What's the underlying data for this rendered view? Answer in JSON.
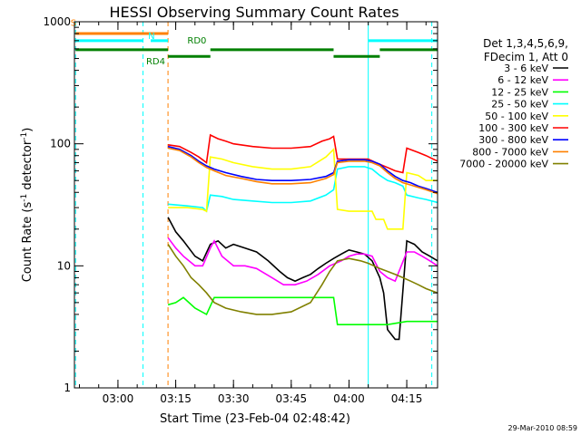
{
  "chart_data": {
    "type": "line",
    "title": "HESSI Observing Summary Count Rates",
    "xlabel": "Start Time (23-Feb-04 02:48:42)",
    "ylabel_main": "Count Rate (s",
    "ylabel_sup1": "-1",
    "ylabel_mid": " detector",
    "ylabel_sup2": "-1",
    "ylabel_end": ")",
    "y_scale": "log",
    "ylim": [
      1,
      1000
    ],
    "y_ticks": [
      {
        "label": "1",
        "v": 1
      },
      {
        "label": "10",
        "v": 10
      },
      {
        "label": "100",
        "v": 100
      },
      {
        "label": "1000",
        "v": 1000
      }
    ],
    "xlim": [
      -11.3,
      83
    ],
    "x_ticks": [
      {
        "label": "03:00",
        "t": 0
      },
      {
        "label": "03:15",
        "t": 15
      },
      {
        "label": "03:30",
        "t": 30
      },
      {
        "label": "03:45",
        "t": 45
      },
      {
        "label": "04:00",
        "t": 60
      },
      {
        "label": "04:15",
        "t": 75
      }
    ],
    "legend_position": "right",
    "legend_header": [
      "Det 1,3,4,5,6,9,",
      "FDecim 1, Att 0"
    ],
    "series": [
      {
        "name": "3 - 6 keV",
        "color": "#000000",
        "points": [
          [
            13,
            25
          ],
          [
            15,
            19
          ],
          [
            17,
            16
          ],
          [
            20,
            12
          ],
          [
            22,
            11
          ],
          [
            24,
            15
          ],
          [
            26,
            16
          ],
          [
            28,
            14
          ],
          [
            30,
            15
          ],
          [
            33,
            14
          ],
          [
            36,
            13
          ],
          [
            39,
            11
          ],
          [
            42,
            9
          ],
          [
            44,
            8
          ],
          [
            46,
            7.5
          ],
          [
            48,
            8
          ],
          [
            50,
            8.5
          ],
          [
            52,
            9.5
          ],
          [
            54,
            10.5
          ],
          [
            56,
            11.5
          ],
          [
            58,
            12.5
          ],
          [
            60,
            13.5
          ],
          [
            62,
            13
          ],
          [
            64,
            12.5
          ],
          [
            66,
            11
          ],
          [
            68,
            8
          ],
          [
            69,
            6
          ],
          [
            70,
            3
          ],
          [
            72,
            2.5
          ],
          [
            73,
            2.5
          ],
          [
            75,
            16
          ],
          [
            77,
            15
          ],
          [
            79,
            13
          ],
          [
            81,
            12
          ],
          [
            83,
            11
          ]
        ]
      },
      {
        "name": "6 - 12 keV",
        "color": "#ff00ff",
        "points": [
          [
            13,
            17
          ],
          [
            15,
            14
          ],
          [
            17,
            12
          ],
          [
            20,
            10
          ],
          [
            22,
            10
          ],
          [
            24,
            14
          ],
          [
            25,
            16
          ],
          [
            27,
            12
          ],
          [
            30,
            10
          ],
          [
            33,
            10
          ],
          [
            36,
            9.5
          ],
          [
            40,
            8
          ],
          [
            43,
            7
          ],
          [
            46,
            7
          ],
          [
            49,
            7.5
          ],
          [
            52,
            8.5
          ],
          [
            55,
            10
          ],
          [
            58,
            11
          ],
          [
            60,
            12
          ],
          [
            62,
            12.5
          ],
          [
            64,
            12.5
          ],
          [
            66,
            12
          ],
          [
            68,
            9
          ],
          [
            70,
            8
          ],
          [
            72,
            7.5
          ],
          [
            75,
            13
          ],
          [
            77,
            13
          ],
          [
            79,
            12
          ],
          [
            81,
            11
          ],
          [
            83,
            10
          ]
        ]
      },
      {
        "name": "12 - 25 keV",
        "color": "#00ff00",
        "points": [
          [
            13,
            4.8
          ],
          [
            15,
            5
          ],
          [
            17,
            5.5
          ],
          [
            20,
            4.5
          ],
          [
            23,
            4
          ],
          [
            25,
            5.5
          ],
          [
            30,
            5.5
          ],
          [
            40,
            5.5
          ],
          [
            50,
            5.5
          ],
          [
            56,
            5.5
          ],
          [
            57,
            3.3
          ],
          [
            60,
            3.3
          ],
          [
            65,
            3.3
          ],
          [
            70,
            3.3
          ],
          [
            75,
            3.5
          ],
          [
            80,
            3.5
          ],
          [
            83,
            3.5
          ]
        ]
      },
      {
        "name": "25 - 50 keV",
        "color": "#00ffff",
        "points": [
          [
            13,
            32
          ],
          [
            18,
            31
          ],
          [
            22,
            30
          ],
          [
            23,
            28
          ],
          [
            24,
            38
          ],
          [
            27,
            37
          ],
          [
            30,
            35
          ],
          [
            35,
            34
          ],
          [
            40,
            33
          ],
          [
            45,
            33
          ],
          [
            50,
            34
          ],
          [
            54,
            38
          ],
          [
            56,
            42
          ],
          [
            57,
            62
          ],
          [
            60,
            65
          ],
          [
            64,
            65
          ],
          [
            66,
            62
          ],
          [
            68,
            55
          ],
          [
            70,
            50
          ],
          [
            72,
            48
          ],
          [
            74,
            45
          ],
          [
            75,
            38
          ],
          [
            78,
            36
          ],
          [
            80,
            35
          ],
          [
            83,
            33
          ]
        ]
      },
      {
        "name": "50 - 100 keV",
        "color": "#ffff00",
        "points": [
          [
            13,
            30
          ],
          [
            18,
            30
          ],
          [
            22,
            29
          ],
          [
            23,
            28
          ],
          [
            24,
            78
          ],
          [
            27,
            75
          ],
          [
            30,
            70
          ],
          [
            35,
            65
          ],
          [
            40,
            62
          ],
          [
            45,
            62
          ],
          [
            50,
            65
          ],
          [
            54,
            78
          ],
          [
            56,
            90
          ],
          [
            57,
            29
          ],
          [
            60,
            28
          ],
          [
            64,
            28
          ],
          [
            66,
            28
          ],
          [
            67,
            24
          ],
          [
            68,
            24
          ],
          [
            69,
            24
          ],
          [
            70,
            20
          ],
          [
            72,
            20
          ],
          [
            74,
            20
          ],
          [
            75,
            58
          ],
          [
            78,
            55
          ],
          [
            80,
            50
          ],
          [
            83,
            50
          ]
        ]
      },
      {
        "name": "100 - 300 keV",
        "color": "#ff0000",
        "points": [
          [
            13,
            98
          ],
          [
            16,
            95
          ],
          [
            19,
            85
          ],
          [
            21,
            78
          ],
          [
            23,
            70
          ],
          [
            24,
            118
          ],
          [
            26,
            110
          ],
          [
            28,
            105
          ],
          [
            30,
            100
          ],
          [
            35,
            95
          ],
          [
            40,
            92
          ],
          [
            45,
            92
          ],
          [
            50,
            95
          ],
          [
            53,
            105
          ],
          [
            55,
            110
          ],
          [
            56,
            115
          ],
          [
            57,
            75
          ],
          [
            60,
            75
          ],
          [
            65,
            75
          ],
          [
            67,
            70
          ],
          [
            70,
            64
          ],
          [
            72,
            60
          ],
          [
            74,
            58
          ],
          [
            75,
            92
          ],
          [
            78,
            85
          ],
          [
            80,
            80
          ],
          [
            83,
            72
          ]
        ]
      },
      {
        "name": "300 - 800 keV",
        "color": "#0000ff",
        "points": [
          [
            13,
            95
          ],
          [
            16,
            90
          ],
          [
            19,
            80
          ],
          [
            21,
            72
          ],
          [
            23,
            66
          ],
          [
            25,
            62
          ],
          [
            28,
            58
          ],
          [
            32,
            54
          ],
          [
            36,
            51
          ],
          [
            40,
            50
          ],
          [
            45,
            50
          ],
          [
            50,
            51
          ],
          [
            54,
            54
          ],
          [
            56,
            58
          ],
          [
            57,
            72
          ],
          [
            60,
            74
          ],
          [
            64,
            74
          ],
          [
            66,
            72
          ],
          [
            68,
            68
          ],
          [
            70,
            60
          ],
          [
            72,
            54
          ],
          [
            74,
            50
          ],
          [
            76,
            48
          ],
          [
            78,
            45
          ],
          [
            80,
            43
          ],
          [
            83,
            40
          ]
        ]
      },
      {
        "name": "800 - 7000 keV",
        "color": "#ff8000",
        "points": [
          [
            13,
            92
          ],
          [
            16,
            88
          ],
          [
            19,
            78
          ],
          [
            21,
            70
          ],
          [
            23,
            64
          ],
          [
            25,
            60
          ],
          [
            28,
            55
          ],
          [
            32,
            52
          ],
          [
            36,
            49
          ],
          [
            40,
            47
          ],
          [
            45,
            47
          ],
          [
            50,
            48
          ],
          [
            54,
            52
          ],
          [
            56,
            56
          ],
          [
            57,
            70
          ],
          [
            60,
            72
          ],
          [
            64,
            72
          ],
          [
            66,
            70
          ],
          [
            68,
            66
          ],
          [
            70,
            58
          ],
          [
            72,
            52
          ],
          [
            74,
            48
          ],
          [
            76,
            46
          ],
          [
            78,
            44
          ],
          [
            80,
            42
          ],
          [
            83,
            39
          ]
        ]
      },
      {
        "name": "7000 - 20000 keV",
        "color": "#808000",
        "points": [
          [
            13,
            15
          ],
          [
            15,
            12
          ],
          [
            17,
            10
          ],
          [
            19,
            8
          ],
          [
            21,
            7
          ],
          [
            23,
            6
          ],
          [
            25,
            5
          ],
          [
            28,
            4.5
          ],
          [
            32,
            4.2
          ],
          [
            36,
            4
          ],
          [
            40,
            4
          ],
          [
            45,
            4.2
          ],
          [
            50,
            5
          ],
          [
            53,
            7
          ],
          [
            55,
            9
          ],
          [
            57,
            11
          ],
          [
            60,
            11.5
          ],
          [
            63,
            11
          ],
          [
            65,
            10.5
          ],
          [
            68,
            9.5
          ],
          [
            70,
            9
          ],
          [
            72,
            8.5
          ],
          [
            74,
            8
          ],
          [
            76,
            7.5
          ],
          [
            78,
            7
          ],
          [
            80,
            6.5
          ],
          [
            83,
            6
          ]
        ]
      }
    ],
    "flag_bars": [
      {
        "label": "S",
        "color": "#ff8000",
        "value": 800,
        "segments": [
          [
            -11,
            13
          ]
        ]
      },
      {
        "label": "N",
        "color": "#00ffff",
        "value": 700,
        "segments": [
          [
            -11,
            6.5
          ],
          [
            8.5,
            13
          ],
          [
            65,
            83
          ]
        ]
      },
      {
        "label": "RD0",
        "color": "#008000",
        "value": 590,
        "segments": [
          [
            -11,
            13
          ],
          [
            24,
            56
          ],
          [
            68,
            83
          ]
        ]
      },
      {
        "label": "RD4",
        "color": "#008000",
        "value": 520,
        "segments": [
          [
            13,
            24
          ],
          [
            56,
            68
          ]
        ]
      }
    ],
    "vertical_lines": [
      {
        "t": -11,
        "color": "#00ffff",
        "style": "dashed"
      },
      {
        "t": 6.5,
        "color": "#00ffff",
        "style": "dashed"
      },
      {
        "t": 13,
        "color": "#ff8000",
        "style": "dashed"
      },
      {
        "t": 65,
        "color": "#00ffff",
        "style": "solid"
      },
      {
        "t": 81.5,
        "color": "#00ffff",
        "style": "dashed"
      }
    ]
  },
  "footer_timestamp": "29-Mar-2010 08:59"
}
